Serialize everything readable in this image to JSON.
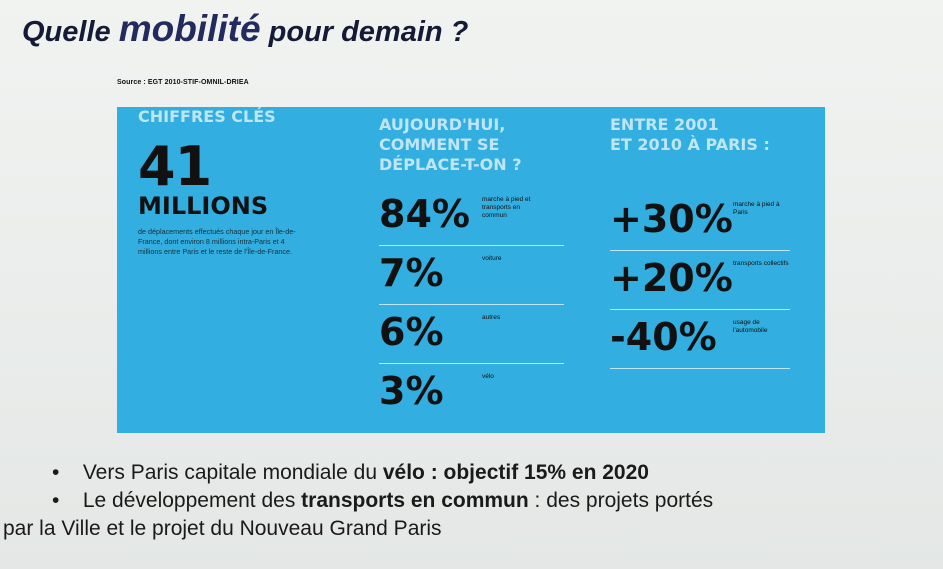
{
  "title": {
    "part1": "Quelle ",
    "part2": "mobilité",
    "part3": " pour demain ?"
  },
  "source": "Source : EGT 2010-STIF-OMNIL-DRIEA",
  "infographic": {
    "col1": {
      "headline": "CHIFFRES CLÉS",
      "big_number": "41",
      "unit": "MILLIONS",
      "description": "de déplacements effectués chaque jour en Île-de-France, dont environ 8 millions intra-Paris et 4 millions entre Paris et le reste de l'Île-de-France."
    },
    "col2": {
      "headline": [
        "AUJOURD'HUI,",
        "COMMENT SE",
        "DÉPLACE-T-ON ?"
      ],
      "stats": [
        {
          "value": "84%",
          "label": "marche à pied et transports en commun"
        },
        {
          "value": "7%",
          "label": "voiture"
        },
        {
          "value": "6%",
          "label": "autres"
        },
        {
          "value": "3%",
          "label": "vélo"
        }
      ]
    },
    "col3": {
      "headline": [
        "ENTRE 2001",
        "ET 2010 À PARIS :"
      ],
      "stats": [
        {
          "value": "+30%",
          "label": "marche à pied à Paris"
        },
        {
          "value": "+20%",
          "label": "transports collectifs"
        },
        {
          "value": "-40%",
          "label": "usage de l'automobile"
        }
      ]
    }
  },
  "bullets": {
    "b1": {
      "dot": "•",
      "pre": " Vers Paris capitale mondiale du ",
      "bold1": "vélo : objectif 15% en 2020"
    },
    "b2": {
      "dot": "•",
      "pre": "  Le développement des ",
      "bold1": "transports en commun",
      "post": " : des projets portés",
      "cont": "par la Ville et le projet du Nouveau Grand Paris"
    }
  }
}
